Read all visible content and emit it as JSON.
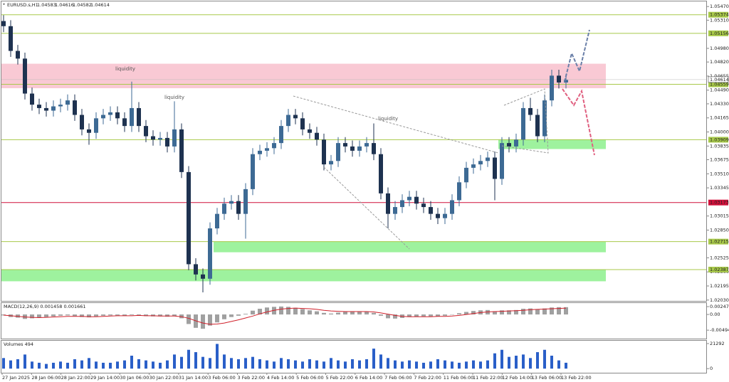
{
  "chart_data": {
    "type": "candlestick",
    "header": {
      "symbol": "EURUSD.s,H1",
      "ohlc": [
        1.04583,
        1.04616,
        1.04582,
        1.04614
      ]
    },
    "annotations": [
      "liquidity",
      "liquidity",
      "liquidity"
    ],
    "ylim": [
      1.0202,
      1.0553
    ],
    "yticks": [
      {
        "value": 1.0547,
        "label": "1.05470"
      },
      {
        "value": 1.0531,
        "label": "1.05310"
      },
      {
        "value": 1.0498,
        "label": "1.04980"
      },
      {
        "value": 1.0482,
        "label": "1.04820"
      },
      {
        "value": 1.04655,
        "label": "1.04655"
      },
      {
        "value": 1.0449,
        "label": "1.04490"
      },
      {
        "value": 1.0433,
        "label": "1.04330"
      },
      {
        "value": 1.04165,
        "label": "1.04165"
      },
      {
        "value": 1.04,
        "label": "1.04000"
      },
      {
        "value": 1.03835,
        "label": "1.03835"
      },
      {
        "value": 1.03675,
        "label": "1.03675"
      },
      {
        "value": 1.0351,
        "label": "1.03510"
      },
      {
        "value": 1.03345,
        "label": "1.03345"
      },
      {
        "value": 1.03015,
        "label": "1.03015"
      },
      {
        "value": 1.0285,
        "label": "1.02850"
      },
      {
        "value": 1.02525,
        "label": "1.02525"
      },
      {
        "value": 1.0236,
        "label": "1.02360"
      },
      {
        "value": 1.02195,
        "label": "1.02195"
      },
      {
        "value": 1.0203,
        "label": "1.02030"
      }
    ],
    "current_price": 1.04614,
    "levels": [
      {
        "value": 1.05374,
        "color": "#a8c94a"
      },
      {
        "value": 1.05156,
        "color": "#a8c94a"
      },
      {
        "value": 1.04559,
        "color": "#a8c94a"
      },
      {
        "value": 1.03909,
        "color": "#a8c94a"
      },
      {
        "value": 1.03173,
        "color": "#d0103a"
      },
      {
        "value": 1.02715,
        "color": "#a8c94a"
      },
      {
        "value": 1.02387,
        "color": "#a8c94a"
      }
    ],
    "zones": [
      {
        "from": 1.048,
        "to": 1.04513,
        "color": "#f9c9d4"
      },
      {
        "from": 1.03909,
        "to": 1.038,
        "color": "#9ef29e"
      },
      {
        "from": 1.02715,
        "to": 1.0259,
        "color": "#9ef29e"
      },
      {
        "from": 1.02387,
        "to": 1.0225,
        "color": "#9ef29e"
      }
    ],
    "bull_color": "#3d6a94",
    "bear_color": "#1e3250",
    "open": [
      1.053,
      1.0524,
      1.0495,
      1.0486,
      1.0445,
      1.0432,
      1.0428,
      1.0425,
      1.043,
      1.0432,
      1.0437,
      1.042,
      1.0403,
      1.0399,
      1.0416,
      1.042,
      1.0423,
      1.0416,
      1.0407,
      1.0428,
      1.0407,
      1.0395,
      1.0391,
      1.0393,
      1.0383,
      1.0403,
      1.0353,
      1.0245,
      1.0233,
      1.0228,
      1.0287,
      1.0304,
      1.0316,
      1.0319,
      1.0304,
      1.0333,
      1.0374,
      1.0378,
      1.0381,
      1.0387,
      1.0407,
      1.042,
      1.0416,
      1.0403,
      1.0399,
      1.0391,
      1.0362,
      1.0366,
      1.0387,
      1.0383,
      1.0378,
      1.0383,
      1.0387,
      1.0374,
      1.0328,
      1.0304,
      1.0312,
      1.032,
      1.0324,
      1.0316,
      1.0312,
      1.0304,
      1.0299,
      1.0304,
      1.032,
      1.0341,
      1.0358,
      1.0362,
      1.0366,
      1.037,
      1.0345,
      1.0387,
      1.0383,
      1.0391,
      1.0428,
      1.042,
      1.0395,
      1.0437,
      1.0466,
      1.0458
    ],
    "high": [
      1.0537,
      1.0531,
      1.0502,
      1.0493,
      1.0452,
      1.0439,
      1.0435,
      1.0437,
      1.0439,
      1.0444,
      1.0444,
      1.0427,
      1.041,
      1.0423,
      1.0427,
      1.043,
      1.043,
      1.0423,
      1.0459,
      1.0435,
      1.0414,
      1.0402,
      1.04,
      1.04,
      1.0436,
      1.041,
      1.036,
      1.0252,
      1.024,
      1.0294,
      1.0311,
      1.0323,
      1.0326,
      1.0326,
      1.034,
      1.0381,
      1.0385,
      1.0388,
      1.0394,
      1.0414,
      1.0427,
      1.0427,
      1.0423,
      1.041,
      1.0406,
      1.0398,
      1.0373,
      1.0394,
      1.0394,
      1.039,
      1.039,
      1.0394,
      1.041,
      1.0381,
      1.0335,
      1.0319,
      1.0327,
      1.0331,
      1.0331,
      1.0323,
      1.0319,
      1.0311,
      1.0311,
      1.0327,
      1.0348,
      1.0365,
      1.0369,
      1.0373,
      1.0377,
      1.0377,
      1.0394,
      1.0394,
      1.0398,
      1.0435,
      1.044,
      1.0427,
      1.0444,
      1.0473,
      1.0473,
      1.0468
    ],
    "low": [
      1.0517,
      1.0488,
      1.0479,
      1.0438,
      1.0425,
      1.0421,
      1.0418,
      1.0418,
      1.0423,
      1.0425,
      1.0413,
      1.0396,
      1.0385,
      1.0392,
      1.0409,
      1.0413,
      1.0409,
      1.04,
      1.04,
      1.04,
      1.0388,
      1.0384,
      1.0384,
      1.0376,
      1.0376,
      1.0346,
      1.0238,
      1.0226,
      1.0212,
      1.0221,
      1.028,
      1.0297,
      1.0309,
      1.0297,
      1.0275,
      1.0326,
      1.0367,
      1.0371,
      1.0374,
      1.038,
      1.04,
      1.0409,
      1.0396,
      1.0392,
      1.0384,
      1.0355,
      1.0355,
      1.0359,
      1.0376,
      1.0371,
      1.0371,
      1.0376,
      1.0367,
      1.0321,
      1.0287,
      1.0297,
      1.0305,
      1.0313,
      1.0309,
      1.0305,
      1.0297,
      1.0292,
      1.0292,
      1.0297,
      1.0313,
      1.0334,
      1.0351,
      1.0355,
      1.0359,
      1.032,
      1.0338,
      1.0376,
      1.0376,
      1.0384,
      1.0413,
      1.0388,
      1.0388,
      1.043,
      1.0451,
      1.0451
    ],
    "close": [
      1.0524,
      1.0495,
      1.0486,
      1.0445,
      1.0432,
      1.0428,
      1.0425,
      1.043,
      1.0432,
      1.0437,
      1.042,
      1.0403,
      1.0399,
      1.0416,
      1.042,
      1.0423,
      1.0416,
      1.0407,
      1.0428,
      1.0407,
      1.0395,
      1.0391,
      1.0393,
      1.0383,
      1.0403,
      1.0353,
      1.0245,
      1.0233,
      1.0228,
      1.0287,
      1.0304,
      1.0316,
      1.0319,
      1.0304,
      1.0333,
      1.0374,
      1.0378,
      1.0381,
      1.0387,
      1.0407,
      1.042,
      1.0416,
      1.0403,
      1.0399,
      1.0391,
      1.0362,
      1.0366,
      1.0387,
      1.0383,
      1.0378,
      1.0383,
      1.0387,
      1.0374,
      1.0328,
      1.0304,
      1.0312,
      1.032,
      1.0324,
      1.0316,
      1.0312,
      1.0304,
      1.0299,
      1.0304,
      1.032,
      1.0341,
      1.0358,
      1.0362,
      1.0366,
      1.037,
      1.0345,
      1.0387,
      1.0383,
      1.0391,
      1.0428,
      1.042,
      1.0395,
      1.0437,
      1.0466,
      1.0458,
      1.0461
    ],
    "time_labels": [
      "27 Jan 2025",
      "28 Jan 06:00",
      "28 Jan 22:00",
      "29 Jan 14:00",
      "30 Jan 06:00",
      "30 Jan 22:00",
      "31 Jan 14:00",
      "3 Feb 06:00",
      "3 Feb 22:00",
      "4 Feb 14:00",
      "5 Feb 06:00",
      "5 Feb 22:00",
      "6 Feb 14:00",
      "7 Feb 06:00",
      "7 Feb 22:00",
      "11 Feb 06:00",
      "11 Feb 22:00",
      "12 Feb 14:00",
      "13 Feb 06:00",
      "13 Feb 22:00"
    ],
    "macd": {
      "title": "MACD(12,26,9) 0.001458 0.001661",
      "ylim": [
        -0.0076,
        0.0036
      ],
      "yticks": [
        0.002471,
        {
          "value": 0,
          "label": "0.00"
        },
        -0.004942
      ],
      "hist_color": "#a0a0a0",
      "signal_color": "#d0202a",
      "histogram": [
        -0.0003,
        -0.0008,
        -0.001,
        -0.0014,
        -0.0012,
        -0.001,
        -0.0008,
        -0.0006,
        -0.0004,
        -0.0003,
        -0.0005,
        -0.0008,
        -0.0009,
        -0.0006,
        -0.0004,
        -0.0003,
        -0.0003,
        -0.0004,
        -0.0002,
        -0.0003,
        -0.0005,
        -0.0006,
        -0.0006,
        -0.0007,
        -0.0005,
        -0.0012,
        -0.003,
        -0.0042,
        -0.0045,
        -0.0035,
        -0.0025,
        -0.0015,
        -0.0008,
        -0.0004,
        0.0002,
        0.0012,
        0.0018,
        0.0022,
        0.0024,
        0.0025,
        0.0024,
        0.0021,
        0.0017,
        0.0013,
        0.001,
        0.0005,
        0.0003,
        0.0006,
        0.0008,
        0.0008,
        0.0008,
        0.0008,
        0.0005,
        -0.0004,
        -0.0012,
        -0.0013,
        -0.0011,
        -0.0008,
        -0.0007,
        -0.0006,
        -0.0006,
        -0.0006,
        -0.0004,
        -0.0001,
        0.0004,
        0.0008,
        0.0011,
        0.0013,
        0.0014,
        0.001,
        0.0013,
        0.0013,
        0.0014,
        0.0018,
        0.0019,
        0.0017,
        0.0019,
        0.0022,
        0.0023,
        0.0023
      ],
      "signal": [
        -0.0002,
        -0.0004,
        -0.0006,
        -0.0008,
        -0.0009,
        -0.001,
        -0.0009,
        -0.0008,
        -0.0007,
        -0.0006,
        -0.0006,
        -0.0006,
        -0.0007,
        -0.0007,
        -0.0006,
        -0.0005,
        -0.0004,
        -0.0004,
        -0.0004,
        -0.0003,
        -0.0004,
        -0.0004,
        -0.0005,
        -0.0005,
        -0.0005,
        -0.0007,
        -0.0012,
        -0.002,
        -0.0027,
        -0.0031,
        -0.003,
        -0.0027,
        -0.0022,
        -0.0017,
        -0.0011,
        -0.0005,
        0.0002,
        0.0008,
        0.0013,
        0.0017,
        0.0019,
        0.002,
        0.0019,
        0.0018,
        0.0016,
        0.0013,
        0.0011,
        0.001,
        0.0009,
        0.0009,
        0.0009,
        0.0009,
        0.0008,
        0.0005,
        0.0001,
        -0.0003,
        -0.0006,
        -0.0007,
        -0.0007,
        -0.0007,
        -0.0007,
        -0.0006,
        -0.0006,
        -0.0005,
        -0.0003,
        0.0,
        0.0003,
        0.0006,
        0.0008,
        0.0009,
        0.001,
        0.0011,
        0.0012,
        0.0013,
        0.0015,
        0.0016,
        0.0017,
        0.0018,
        0.0019,
        0.002
      ]
    },
    "volumes": {
      "title": "Volumes 494",
      "ylim": [
        -3500,
        23700
      ],
      "yticks": [
        21292,
        0
      ],
      "color": "#2a5fc8",
      "values": [
        9000,
        7000,
        8000,
        12000,
        6000,
        5000,
        4000,
        5000,
        6000,
        5000,
        8000,
        7000,
        9000,
        6000,
        5000,
        5000,
        6000,
        7000,
        11000,
        8000,
        7000,
        6000,
        5000,
        7000,
        12000,
        10000,
        16000,
        14000,
        10000,
        9000,
        21000,
        12000,
        9000,
        8000,
        9000,
        10000,
        8000,
        7000,
        6000,
        9000,
        8000,
        7000,
        6000,
        8000,
        7000,
        6000,
        9000,
        7000,
        6000,
        8000,
        7000,
        8000,
        17000,
        12000,
        9000,
        7000,
        6000,
        7000,
        6000,
        5000,
        6000,
        8000,
        7000,
        6000,
        5000,
        6000,
        7000,
        6000,
        7000,
        13000,
        16000,
        10000,
        11000,
        12000,
        9000,
        14000,
        16000,
        11000,
        7000,
        5000
      ]
    }
  }
}
